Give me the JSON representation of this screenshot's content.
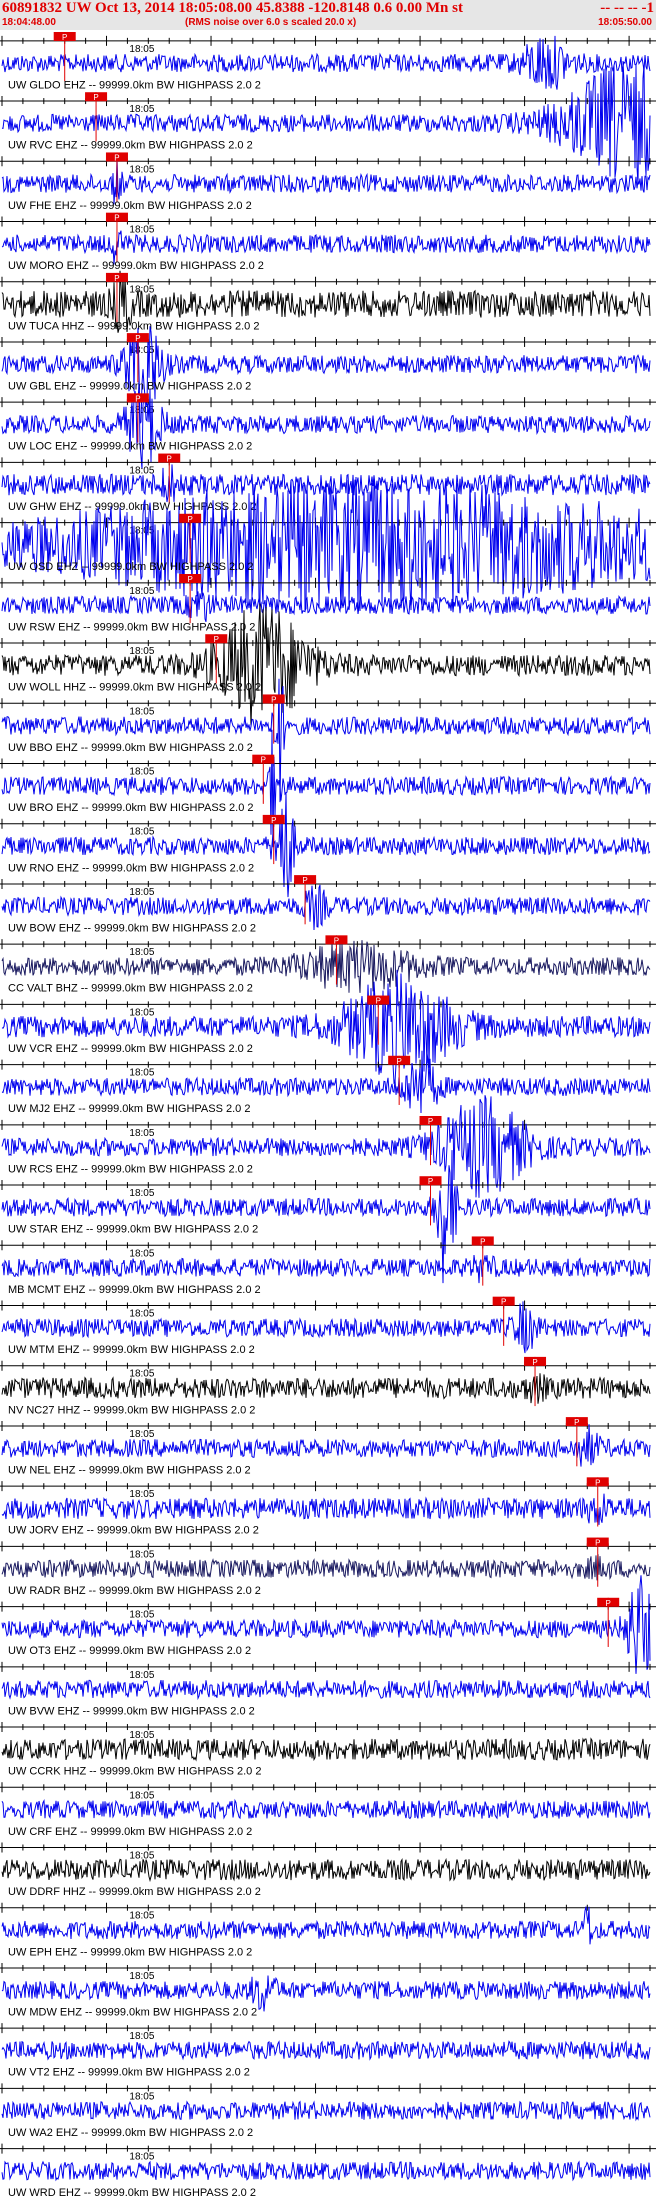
{
  "header": {
    "title": "60891832 UW Oct 13, 2014 18:05:08.00   45.8388 -120.8148  0.6 0.00 Mn st",
    "title_suffix": "-- -- -- -1",
    "start_time": "18:04:48.00",
    "note": "(RMS noise over 6.0 s scaled 20.0 x)",
    "end_time": "18:05:50.00"
  },
  "colors": {
    "header_bg": "#e6e6e6",
    "header_text": "#e00000",
    "pick": "#e00000",
    "trace_blue": "#0000ee",
    "trace_black": "#000000",
    "trace_navy": "#1a1a60"
  },
  "chart_data": {
    "type": "line",
    "title": "60891832 UW Oct 13, 2014 18:05:08.00",
    "x_range": [
      "18:04:48.00",
      "18:05:50.00"
    ],
    "x_tick_label": "18:05",
    "trace_suffix": " -- 99999.0km BW  HIGHPASS  2.0  2",
    "pick_label": "P",
    "series": [
      {
        "name": "UW GLDO EHZ",
        "color": "#0000ee",
        "amp": 0.3,
        "pick": 6,
        "burst": [
          52,
          2,
          1.2
        ]
      },
      {
        "name": "UW RVC EHZ",
        "color": "#0000ee",
        "amp": 0.3,
        "pick": 9,
        "burst": [
          60,
          6,
          2.8
        ]
      },
      {
        "name": "UW FHE EHZ",
        "color": "#0000ee",
        "amp": 0.3,
        "pick": 11,
        "burst": [
          11,
          0.4,
          1.0
        ]
      },
      {
        "name": "UW MORO EHZ",
        "color": "#0000ee",
        "amp": 0.3,
        "pick": 11,
        "burst": [
          11,
          0.4,
          1.0
        ]
      },
      {
        "name": "UW TUCA HHZ",
        "color": "#000000",
        "amp": 0.45,
        "pick": 11,
        "burst": [
          11.5,
          0.8,
          0.8
        ]
      },
      {
        "name": "UW GBL EHZ",
        "color": "#0000ee",
        "amp": 0.3,
        "pick": 13,
        "burst": [
          13.5,
          1.5,
          2.8
        ]
      },
      {
        "name": "UW LOC EHZ",
        "color": "#0000ee",
        "amp": 0.3,
        "pick": 13,
        "burst": [
          13.5,
          1.5,
          2.0
        ]
      },
      {
        "name": "UW GHW EHZ",
        "color": "#0000ee",
        "amp": 0.35,
        "pick": 16,
        "burst": [
          16,
          1,
          0.5
        ]
      },
      {
        "name": "UW OSD EHZ",
        "color": "#0000ee",
        "amp": 0.35,
        "pick": 18,
        "burst": [
          35,
          30,
          2.5
        ]
      },
      {
        "name": "UW RSW EHZ",
        "color": "#0000ee",
        "amp": 0.3,
        "pick": 18,
        "burst": [
          19,
          1,
          0.6
        ]
      },
      {
        "name": "UW WOLL HHZ",
        "color": "#000000",
        "amp": 0.35,
        "pick": 20.5,
        "burst": [
          25,
          4,
          2.4
        ]
      },
      {
        "name": "UW BBO EHZ",
        "color": "#0000ee",
        "amp": 0.3,
        "pick": 26,
        "burst": [
          26.5,
          0.4,
          4.0
        ]
      },
      {
        "name": "UW BRO EHZ",
        "color": "#0000ee",
        "amp": 0.3,
        "pick": 25,
        "burst": [
          26,
          0.5,
          2.8
        ]
      },
      {
        "name": "UW RNO EHZ",
        "color": "#0000ee",
        "amp": 0.3,
        "pick": 26,
        "burst": [
          27,
          0.8,
          3.2
        ]
      },
      {
        "name": "UW BOW EHZ",
        "color": "#0000ee",
        "amp": 0.3,
        "pick": 29,
        "burst": [
          30,
          1,
          0.8
        ]
      },
      {
        "name": "CC VALT BHZ",
        "color": "#1a1a60",
        "amp": 0.3,
        "pick": 32,
        "burst": [
          34,
          5,
          1.0
        ]
      },
      {
        "name": "UW VCR EHZ",
        "color": "#0000ee",
        "amp": 0.35,
        "pick": 36,
        "burst": [
          38,
          5,
          2.0
        ]
      },
      {
        "name": "UW MJ2 EHZ",
        "color": "#0000ee",
        "amp": 0.3,
        "pick": 38,
        "burst": [
          40,
          1.5,
          1.5
        ]
      },
      {
        "name": "UW RCS EHZ",
        "color": "#0000ee",
        "amp": 0.3,
        "pick": 41,
        "burst": [
          46,
          4,
          2.2
        ]
      },
      {
        "name": "UW STAR EHZ",
        "color": "#0000ee",
        "amp": 0.3,
        "pick": 41,
        "burst": [
          42.5,
          0.8,
          4.0
        ]
      },
      {
        "name": "MB MCMT EHZ",
        "color": "#0000ee",
        "amp": 0.3,
        "pick": 46,
        "burst": [
          46,
          1,
          0.4
        ]
      },
      {
        "name": "UW MTM EHZ",
        "color": "#0000ee",
        "amp": 0.3,
        "pick": 48,
        "burst": [
          50,
          1,
          1.0
        ]
      },
      {
        "name": "NV NC27 HHZ",
        "color": "#000000",
        "amp": 0.35,
        "pick": 51,
        "burst": [
          51,
          1,
          0.3
        ]
      },
      {
        "name": "UW NEL EHZ",
        "color": "#0000ee",
        "amp": 0.3,
        "pick": 55,
        "burst": [
          56,
          1,
          0.8
        ]
      },
      {
        "name": "UW JORV EHZ",
        "color": "#0000ee",
        "amp": 0.35,
        "pick": 57,
        "burst": [
          57,
          1,
          0.4
        ]
      },
      {
        "name": "UW RADR BHZ",
        "color": "#1a1a60",
        "amp": 0.3,
        "pick": 57,
        "burst": [
          57,
          1,
          0.3
        ]
      },
      {
        "name": "UW OT3 EHZ",
        "color": "#0000ee",
        "amp": 0.3,
        "pick": 58,
        "burst": [
          61,
          1.2,
          2.5
        ]
      },
      {
        "name": "UW BVW EHZ",
        "color": "#0000ee",
        "amp": 0.3,
        "pick": null,
        "burst": [
          0,
          0,
          0
        ]
      },
      {
        "name": "UW CCRK HHZ",
        "color": "#000000",
        "amp": 0.35,
        "pick": null,
        "burst": [
          0,
          0,
          0
        ]
      },
      {
        "name": "UW CRF EHZ",
        "color": "#0000ee",
        "amp": 0.3,
        "pick": null,
        "burst": [
          0,
          0,
          0
        ]
      },
      {
        "name": "UW DDRF HHZ",
        "color": "#000000",
        "amp": 0.35,
        "pick": null,
        "burst": [
          0,
          0,
          0
        ]
      },
      {
        "name": "UW EPH EHZ",
        "color": "#0000ee",
        "amp": 0.3,
        "pick": null,
        "burst": [
          56,
          0.3,
          1.4
        ]
      },
      {
        "name": "UW MDW EHZ",
        "color": "#0000ee",
        "amp": 0.3,
        "pick": null,
        "burst": [
          25,
          1,
          0.8
        ]
      },
      {
        "name": "UW VT2 EHZ",
        "color": "#0000ee",
        "amp": 0.3,
        "pick": null,
        "burst": [
          0,
          0,
          0
        ]
      },
      {
        "name": "UW WA2 EHZ",
        "color": "#0000ee",
        "amp": 0.3,
        "pick": null,
        "burst": [
          0,
          0,
          0
        ]
      },
      {
        "name": "UW WRD EHZ",
        "color": "#0000ee",
        "amp": 0.3,
        "pick": null,
        "burst": [
          0,
          0,
          0
        ]
      }
    ]
  }
}
